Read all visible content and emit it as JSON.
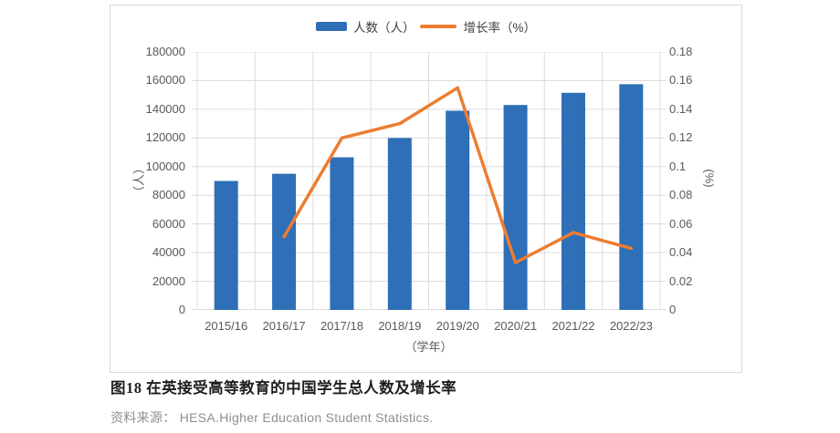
{
  "figure": {
    "caption": "图18 在英接受高等教育的中国学生总人数及增长率",
    "source": "资料来源： HESA.Higher Education Student Statistics."
  },
  "legend": {
    "bar_label": "人数（人）",
    "line_label": "增长率（%）"
  },
  "colors": {
    "bar": "#2e6fb7",
    "line": "#ed7d31",
    "grid": "#dcdcdc",
    "axis_line": "#b7b7b7",
    "tick_text": "#595959"
  },
  "chart_data": {
    "type": "bar",
    "combo": "bar+line",
    "title": "",
    "categories": [
      "2015/16",
      "2016/17",
      "2017/18",
      "2018/19",
      "2019/20",
      "2020/21",
      "2021/22",
      "2022/23"
    ],
    "series": [
      {
        "name": "人数（人）",
        "type": "bar",
        "axis": "left",
        "color": "#2e6fb7",
        "values": [
          90000,
          95000,
          106500,
          120000,
          139000,
          143000,
          151500,
          157500
        ]
      },
      {
        "name": "增长率（%）",
        "type": "line",
        "axis": "right",
        "color": "#ed7d31",
        "values": [
          null,
          0.051,
          0.12,
          0.13,
          0.155,
          0.033,
          0.054,
          0.043
        ]
      }
    ],
    "left_axis": {
      "label": "（人）",
      "min": 0,
      "max": 180000,
      "step": 20000
    },
    "right_axis": {
      "label": "(%)",
      "min": 0,
      "max": 0.18,
      "step": 0.02
    },
    "xlabel": "（学年）",
    "grid": "on",
    "legend_position": "top-center"
  }
}
